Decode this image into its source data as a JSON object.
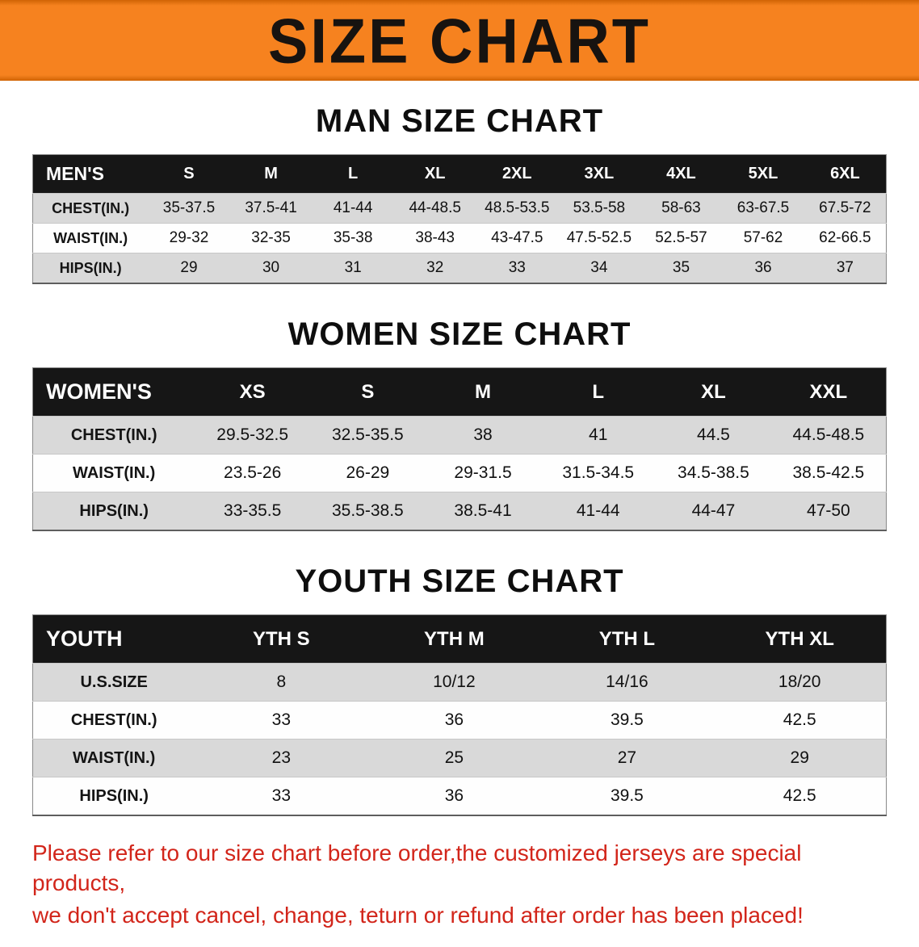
{
  "banner": {
    "title": "SIZE CHART"
  },
  "colors": {
    "banner_bg": "#f6821f",
    "banner_text": "#171310",
    "header_row_bg": "#161616",
    "header_row_text": "#ffffff",
    "stripe": "#d9d9d9",
    "row_white": "#fefefe",
    "disclaimer": "#d2251a",
    "text": "#111111"
  },
  "chart_data": [
    {
      "type": "table",
      "title": "MAN SIZE CHART",
      "header": [
        "MEN'S",
        "S",
        "M",
        "L",
        "XL",
        "2XL",
        "3XL",
        "4XL",
        "5XL",
        "6XL"
      ],
      "rows": [
        [
          "CHEST(IN.)",
          "35-37.5",
          "37.5-41",
          "41-44",
          "44-48.5",
          "48.5-53.5",
          "53.5-58",
          "58-63",
          "63-67.5",
          "67.5-72"
        ],
        [
          "WAIST(IN.)",
          "29-32",
          "32-35",
          "35-38",
          "38-43",
          "43-47.5",
          "47.5-52.5",
          "52.5-57",
          "57-62",
          "62-66.5"
        ],
        [
          "HIPS(IN.)",
          "29",
          "30",
          "31",
          "32",
          "33",
          "34",
          "35",
          "36",
          "37"
        ]
      ]
    },
    {
      "type": "table",
      "title": "WOMEN SIZE CHART",
      "header": [
        "WOMEN'S",
        "XS",
        "S",
        "M",
        "L",
        "XL",
        "XXL"
      ],
      "rows": [
        [
          "CHEST(IN.)",
          "29.5-32.5",
          "32.5-35.5",
          "38",
          "41",
          "44.5",
          "44.5-48.5"
        ],
        [
          "WAIST(IN.)",
          "23.5-26",
          "26-29",
          "29-31.5",
          "31.5-34.5",
          "34.5-38.5",
          "38.5-42.5"
        ],
        [
          "HIPS(IN.)",
          "33-35.5",
          "35.5-38.5",
          "38.5-41",
          "41-44",
          "44-47",
          "47-50"
        ]
      ]
    },
    {
      "type": "table",
      "title": "YOUTH SIZE CHART",
      "header": [
        "YOUTH",
        "YTH S",
        "YTH M",
        "YTH L",
        "YTH XL"
      ],
      "rows": [
        [
          "U.S.SIZE",
          "8",
          "10/12",
          "14/16",
          "18/20"
        ],
        [
          "CHEST(IN.)",
          "33",
          "36",
          "39.5",
          "42.5"
        ],
        [
          "WAIST(IN.)",
          "23",
          "25",
          "27",
          "29"
        ],
        [
          "HIPS(IN.)",
          "33",
          "36",
          "39.5",
          "42.5"
        ]
      ]
    }
  ],
  "disclaimer": {
    "line1": "Please refer to our size chart before order,the customized jerseys are special products,",
    "line2": "we don't accept cancel, change, teturn or refund after order has been placed!"
  }
}
